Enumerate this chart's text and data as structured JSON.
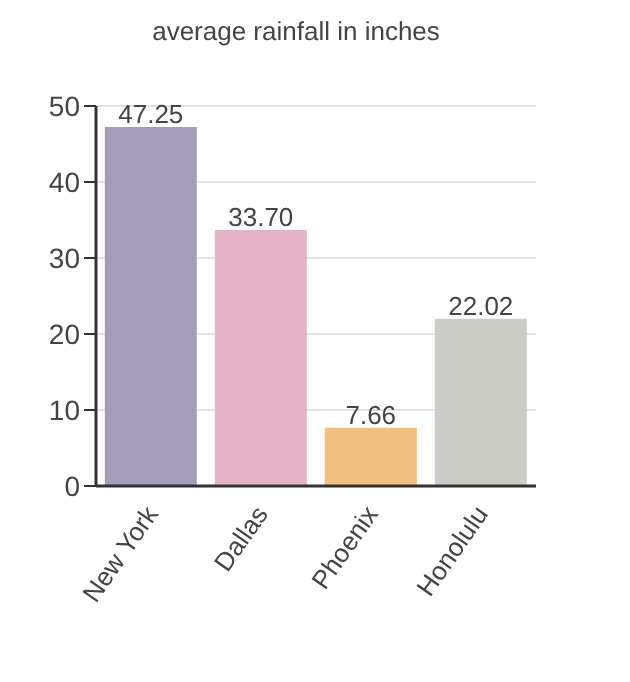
{
  "chart_data": {
    "type": "bar",
    "title": "average rainfall in inches",
    "categories": [
      "New York",
      "Dallas",
      "Phoenix",
      "Honolulu"
    ],
    "values": [
      47.25,
      33.7,
      7.66,
      22.02
    ],
    "colors": [
      "#a59bbb",
      "#e4b3c8",
      "#f1c07f",
      "#cbccc5"
    ],
    "value_labels": [
      "47.25",
      "33.70",
      "7.66",
      "22.02"
    ],
    "ylim": [
      0,
      50
    ],
    "yticks": [
      0,
      10,
      20,
      30,
      40,
      50
    ],
    "grid": "y"
  }
}
